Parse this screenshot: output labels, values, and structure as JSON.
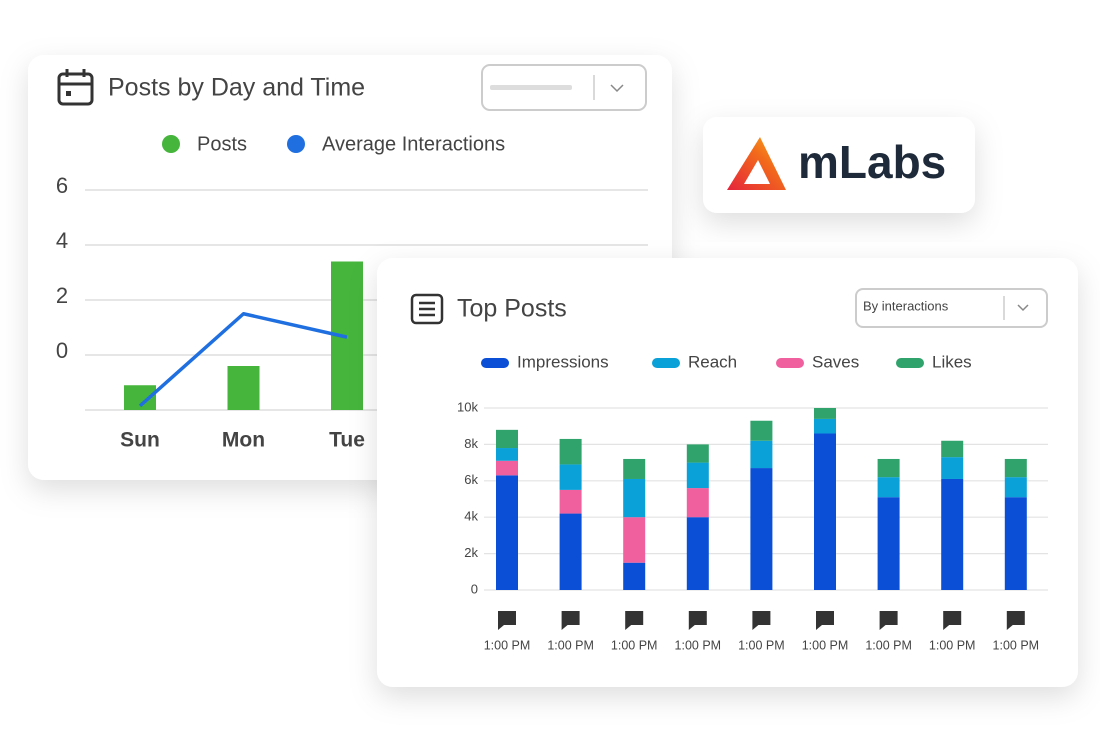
{
  "chart_data": [
    {
      "type": "bar",
      "title": "Posts by Day and Time",
      "categories": [
        "Sun",
        "Mon",
        "Tue"
      ],
      "series": [
        {
          "name": "Posts",
          "color": "#45b53c",
          "kind": "bar",
          "values": [
            -1.1,
            -0.4,
            3.4
          ]
        },
        {
          "name": "Average Interactions",
          "color": "#1f6fe0",
          "kind": "line",
          "values": [
            -1.85,
            1.5,
            0.65
          ]
        }
      ],
      "ylim": [
        -2,
        6
      ],
      "yticks": [
        0,
        2,
        4,
        6
      ],
      "grid": true
    },
    {
      "type": "stacked_bar",
      "title": "Top Posts",
      "dropdown": "By interactions",
      "categories": [
        "1:00 PM",
        "1:00 PM",
        "1:00 PM",
        "1:00 PM",
        "1:00 PM",
        "1:00 PM",
        "1:00 PM",
        "1:00 PM",
        "1:00 PM"
      ],
      "series": [
        {
          "name": "Impressions",
          "color": "#0a4fd6",
          "values": [
            6300,
            4200,
            1500,
            4000,
            6700,
            8600,
            5100,
            6100,
            5100
          ]
        },
        {
          "name": "Reach",
          "color": "#0aa0d8",
          "values": [
            700,
            1400,
            2100,
            1400,
            1500,
            800,
            1100,
            1200,
            1100
          ]
        },
        {
          "name": "Saves",
          "color": "#f0609e",
          "values": [
            800,
            1300,
            2500,
            1600,
            0,
            0,
            0,
            0,
            0
          ]
        },
        {
          "name": "Likes",
          "color": "#2fa36b",
          "values": [
            1000,
            1400,
            1100,
            1000,
            1100,
            600,
            1000,
            900,
            1000
          ]
        }
      ],
      "ylim": [
        0,
        10000
      ],
      "yticks": [
        0,
        {
          "value": 2000,
          "label": "2k"
        },
        {
          "value": 4000,
          "label": "4k"
        },
        {
          "value": 6000,
          "label": "6k"
        },
        {
          "value": 8000,
          "label": "8k"
        },
        {
          "value": 10000,
          "label": "10k"
        }
      ],
      "grid": true
    }
  ],
  "logo": "mLabs"
}
